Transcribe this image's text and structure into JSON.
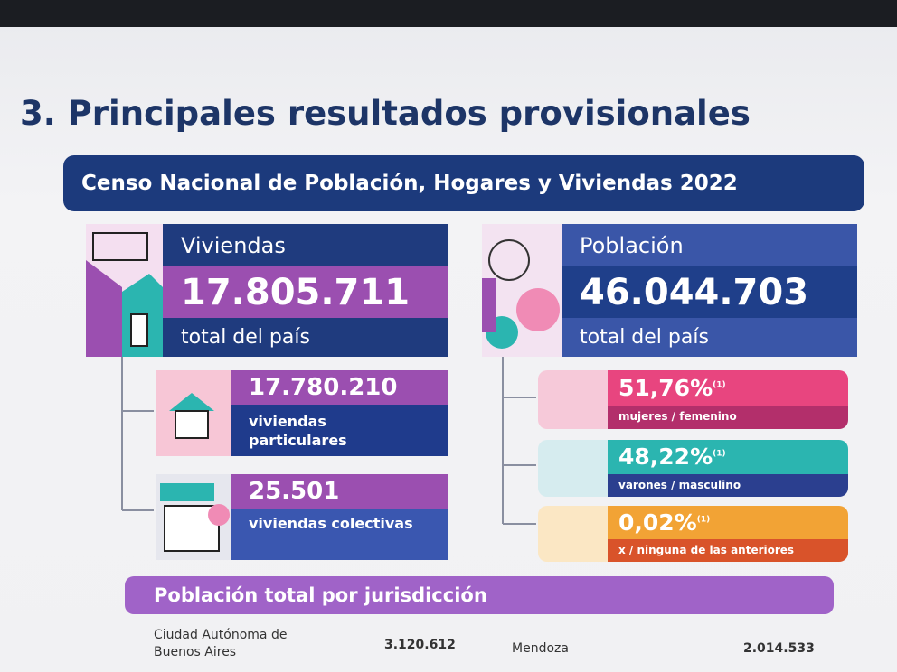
{
  "title": "3. Principales resultados provisionales",
  "banner": "Censo Nacional de Población, Hogares y Viviendas 2022",
  "viviendas": {
    "label": "Viviendas",
    "value": "17.805.711",
    "caption": "total del país",
    "items": [
      {
        "value": "17.780.210",
        "caption": "viviendas particulares"
      },
      {
        "value": "25.501",
        "caption": "viviendas colectivas"
      }
    ]
  },
  "poblacion": {
    "label": "Población",
    "value": "46.044.703",
    "caption": "total del país",
    "items": [
      {
        "value": "51,76%",
        "note": "(1)",
        "caption": "mujeres / femenino"
      },
      {
        "value": "48,22%",
        "note": "(1)",
        "caption": "varones / masculino"
      },
      {
        "value": "0,02%",
        "note": "(1)",
        "caption": "x / ninguna de las anteriores"
      }
    ]
  },
  "jurisdiccion": {
    "title": "Población total por jurisdicción",
    "rows": [
      [
        "Ciudad Autónoma de Buenos Aires",
        "3.120.612"
      ],
      [
        "Mendoza",
        "2.014.533"
      ]
    ]
  }
}
